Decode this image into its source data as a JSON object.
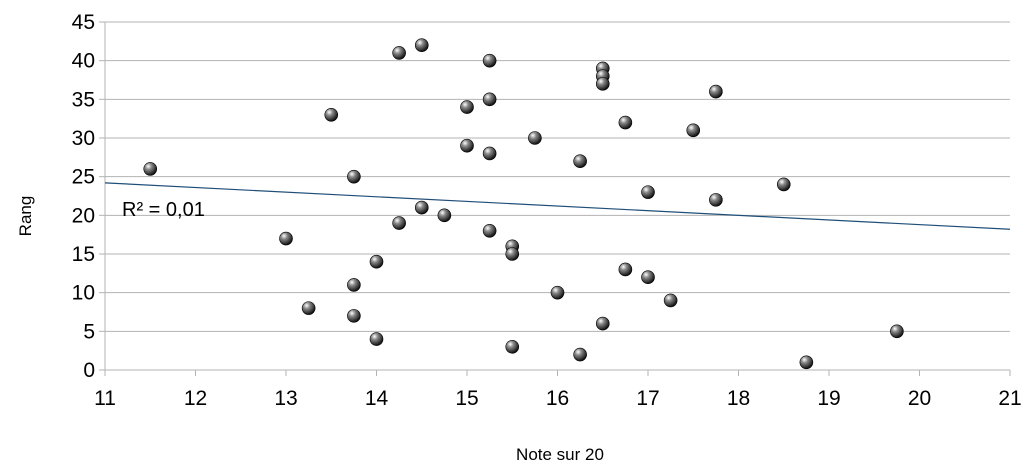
{
  "chart_data": {
    "type": "scatter",
    "title": "",
    "xlabel": "Note sur 20",
    "ylabel": "Rang",
    "xlim": [
      11,
      21
    ],
    "ylim": [
      0,
      45
    ],
    "x_ticks": [
      "11",
      "12",
      "13",
      "14",
      "15",
      "16",
      "17",
      "18",
      "19",
      "20",
      "21"
    ],
    "y_ticks": [
      "0",
      "5",
      "10",
      "15",
      "20",
      "25",
      "30",
      "35",
      "40",
      "45"
    ],
    "grid": true,
    "legend": "none",
    "points": [
      {
        "x": 11.5,
        "y": 26
      },
      {
        "x": 13.0,
        "y": 17
      },
      {
        "x": 13.25,
        "y": 8
      },
      {
        "x": 13.5,
        "y": 33
      },
      {
        "x": 13.75,
        "y": 25
      },
      {
        "x": 13.75,
        "y": 11
      },
      {
        "x": 13.75,
        "y": 7
      },
      {
        "x": 14.0,
        "y": 14
      },
      {
        "x": 14.0,
        "y": 4
      },
      {
        "x": 14.25,
        "y": 41
      },
      {
        "x": 14.25,
        "y": 19
      },
      {
        "x": 14.5,
        "y": 42
      },
      {
        "x": 14.5,
        "y": 21
      },
      {
        "x": 14.75,
        "y": 20
      },
      {
        "x": 15.0,
        "y": 34
      },
      {
        "x": 15.0,
        "y": 29
      },
      {
        "x": 15.25,
        "y": 40
      },
      {
        "x": 15.25,
        "y": 35
      },
      {
        "x": 15.25,
        "y": 28
      },
      {
        "x": 15.25,
        "y": 18
      },
      {
        "x": 15.5,
        "y": 16
      },
      {
        "x": 15.5,
        "y": 15
      },
      {
        "x": 15.5,
        "y": 3
      },
      {
        "x": 15.75,
        "y": 30
      },
      {
        "x": 16.0,
        "y": 10
      },
      {
        "x": 16.25,
        "y": 27
      },
      {
        "x": 16.25,
        "y": 2
      },
      {
        "x": 16.5,
        "y": 39
      },
      {
        "x": 16.5,
        "y": 38
      },
      {
        "x": 16.5,
        "y": 37
      },
      {
        "x": 16.5,
        "y": 6
      },
      {
        "x": 16.75,
        "y": 32
      },
      {
        "x": 16.75,
        "y": 13
      },
      {
        "x": 17.0,
        "y": 23
      },
      {
        "x": 17.0,
        "y": 12
      },
      {
        "x": 17.25,
        "y": 9
      },
      {
        "x": 17.5,
        "y": 31
      },
      {
        "x": 17.75,
        "y": 36
      },
      {
        "x": 17.75,
        "y": 22
      },
      {
        "x": 18.5,
        "y": 24
      },
      {
        "x": 18.75,
        "y": 1
      },
      {
        "x": 19.75,
        "y": 5
      }
    ],
    "trendline": {
      "x": [
        11,
        21
      ],
      "y": [
        24.2,
        18.2
      ],
      "color": "#1f4e79"
    },
    "annotation": "R² = 0,01",
    "colors": {
      "grid": "#b3b3b3",
      "point": "#2a2a2a",
      "trendline": "#1f4e79"
    }
  }
}
